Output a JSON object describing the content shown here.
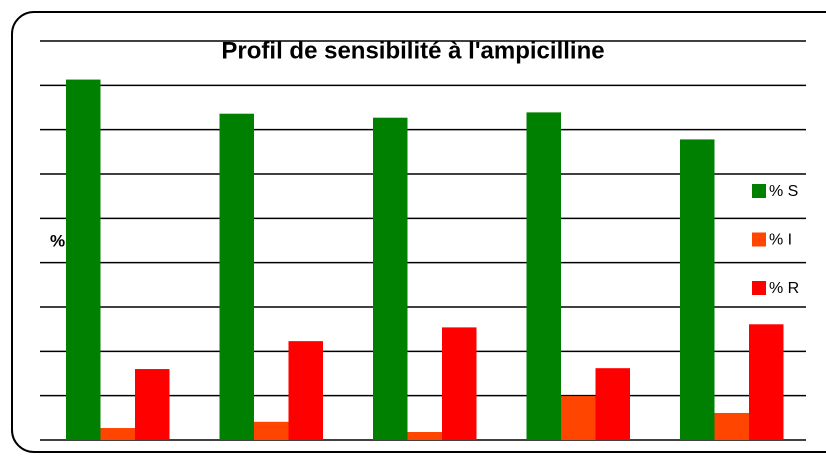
{
  "chart_data": {
    "type": "bar",
    "title": "Profil de sensibilité à l'ampicilline",
    "y_label": "%",
    "categories": [
      null,
      null,
      null,
      null,
      null
    ],
    "series": [
      {
        "name": "% S",
        "color": "#008000",
        "values": [
          81.3,
          73.6,
          72.7,
          73.9,
          67.8
        ]
      },
      {
        "name": "% I",
        "color": "#ff4500",
        "values": [
          2.7,
          4.1,
          1.8,
          9.9,
          6.1
        ]
      },
      {
        "name": "% R",
        "color": "#ff0000",
        "values": [
          16.0,
          22.3,
          25.4,
          16.2,
          26.1
        ]
      }
    ],
    "ylim": [
      0,
      90
    ],
    "yticks": [
      0,
      10,
      20,
      30,
      40,
      50,
      60,
      70,
      80,
      90
    ],
    "grid": true,
    "legend": "right"
  }
}
